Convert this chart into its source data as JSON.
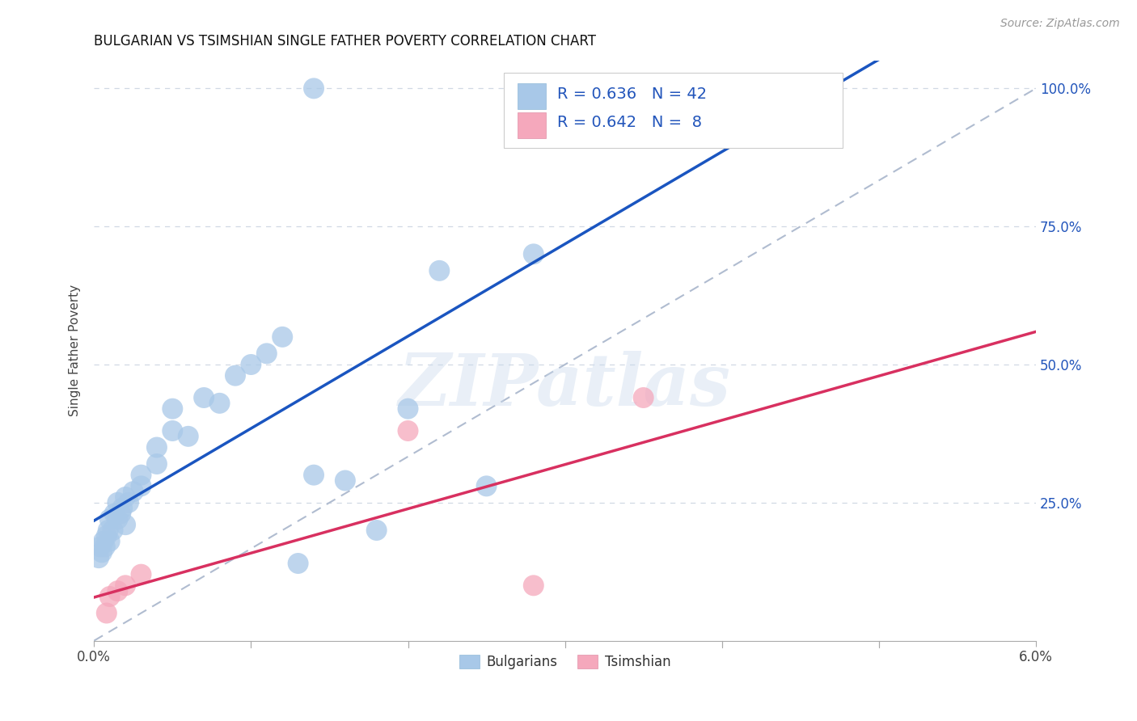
{
  "title": "BULGARIAN VS TSIMSHIAN SINGLE FATHER POVERTY CORRELATION CHART",
  "source": "Source: ZipAtlas.com",
  "ylabel": "Single Father Poverty",
  "blue_color": "#a8c8e8",
  "pink_color": "#f5a8bc",
  "blue_line_color": "#1a55c0",
  "pink_line_color": "#d83060",
  "ref_line_color": "#b0bcd0",
  "grid_color": "#d0d8e4",
  "legend_text_color": "#2255bb",
  "legend_blue_r": "R = 0.636",
  "legend_blue_n": "N = 42",
  "legend_pink_r": "R = 0.642",
  "legend_pink_n": "N =  8",
  "watermark_text": "ZIPatlas",
  "bulgarians_x": [
    0.0003,
    0.0004,
    0.0005,
    0.0006,
    0.0007,
    0.0008,
    0.0009,
    0.001,
    0.001,
    0.0012,
    0.0013,
    0.0015,
    0.0015,
    0.0017,
    0.0018,
    0.002,
    0.002,
    0.0022,
    0.0025,
    0.003,
    0.003,
    0.004,
    0.004,
    0.005,
    0.005,
    0.006,
    0.007,
    0.008,
    0.009,
    0.01,
    0.011,
    0.012,
    0.013,
    0.014,
    0.016,
    0.018,
    0.02,
    0.022,
    0.025,
    0.028,
    0.014,
    0.03
  ],
  "bulgarians_y": [
    0.15,
    0.17,
    0.16,
    0.18,
    0.17,
    0.19,
    0.2,
    0.18,
    0.22,
    0.2,
    0.23,
    0.22,
    0.25,
    0.23,
    0.24,
    0.21,
    0.26,
    0.25,
    0.27,
    0.28,
    0.3,
    0.32,
    0.35,
    0.38,
    0.42,
    0.37,
    0.44,
    0.43,
    0.48,
    0.5,
    0.52,
    0.55,
    0.14,
    0.3,
    0.29,
    0.2,
    0.42,
    0.67,
    0.28,
    0.7,
    1.0,
    1.0
  ],
  "tsimshian_x": [
    0.0008,
    0.001,
    0.0015,
    0.002,
    0.003,
    0.02,
    0.028,
    0.035
  ],
  "tsimshian_y": [
    0.05,
    0.08,
    0.09,
    0.1,
    0.12,
    0.38,
    0.1,
    0.44
  ],
  "xmin": 0.0,
  "xmax": 0.06,
  "ymin": 0.0,
  "ymax": 1.05,
  "xtick_positions": [
    0.0,
    0.01,
    0.02,
    0.03,
    0.04,
    0.05,
    0.06
  ],
  "xtick_labels": [
    "0.0%",
    "",
    "",
    "",
    "",
    "",
    "6.0%"
  ],
  "ytick_right_positions": [
    0.25,
    0.5,
    0.75,
    1.0
  ],
  "ytick_right_labels": [
    "25.0%",
    "50.0%",
    "75.0%",
    "100.0%"
  ]
}
